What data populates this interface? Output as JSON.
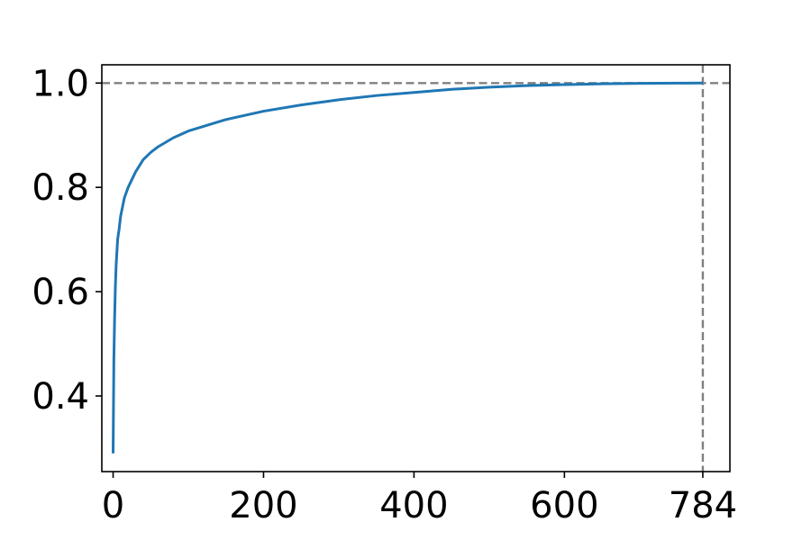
{
  "chart_data": {
    "type": "line",
    "title": "",
    "xlabel": "",
    "ylabel": "",
    "xlim": [
      -15,
      820
    ],
    "ylim": [
      0.255,
      1.035
    ],
    "grid": false,
    "legend": "none",
    "xticks": [
      0,
      200,
      400,
      600,
      784
    ],
    "xtick_labels": [
      "0",
      "200",
      "400",
      "600",
      "784"
    ],
    "yticks": [
      0.4,
      0.6,
      0.8,
      1.0
    ],
    "ytick_labels": [
      "0.4",
      "0.6",
      "0.8",
      "1.0"
    ],
    "reference_lines": [
      {
        "orientation": "horizontal",
        "value": 1.0,
        "color": "#808080",
        "style": "dashed"
      },
      {
        "orientation": "vertical",
        "value": 784,
        "color": "#808080",
        "style": "dashed"
      }
    ],
    "series": [
      {
        "color": "#1f77b4",
        "x": [
          0,
          1,
          2,
          3,
          4,
          6,
          8,
          10,
          15,
          20,
          30,
          40,
          50,
          60,
          80,
          100,
          150,
          200,
          250,
          300,
          350,
          400,
          450,
          500,
          550,
          600,
          650,
          700,
          750,
          784
        ],
        "y": [
          0.29,
          0.47,
          0.55,
          0.61,
          0.65,
          0.7,
          0.72,
          0.745,
          0.78,
          0.8,
          0.83,
          0.853,
          0.867,
          0.878,
          0.895,
          0.908,
          0.93,
          0.946,
          0.958,
          0.968,
          0.976,
          0.982,
          0.988,
          0.992,
          0.995,
          0.997,
          0.9985,
          0.9995,
          0.9999,
          1.0
        ]
      }
    ]
  }
}
